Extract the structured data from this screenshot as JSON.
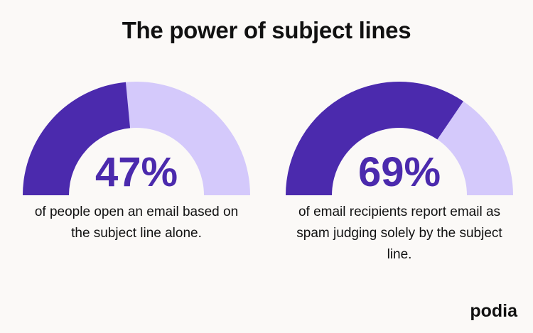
{
  "title": "The power of subject lines",
  "brand": "podia",
  "chart_data": [
    {
      "type": "gauge",
      "values": [
        47
      ],
      "value_labels": [
        "47%"
      ],
      "ylim": [
        0,
        100
      ],
      "color": "#4b2aad",
      "track_color": "#d4c9fb",
      "caption": "of people open an email based on the subject line alone."
    },
    {
      "type": "gauge",
      "values": [
        69
      ],
      "value_labels": [
        "69%"
      ],
      "ylim": [
        0,
        100
      ],
      "color": "#4b2aad",
      "track_color": "#d4c9fb",
      "caption": "of email recipients report email as spam judging solely by the subject line."
    }
  ]
}
